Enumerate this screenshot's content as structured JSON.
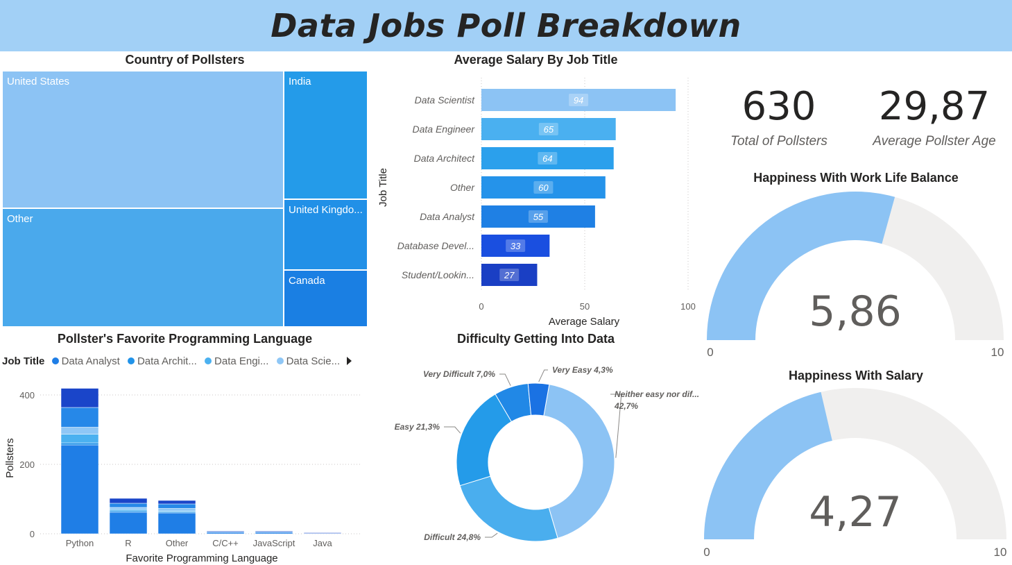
{
  "header": {
    "title": "Data Jobs Poll Breakdown"
  },
  "treemap": {
    "title": "Country of Pollsters",
    "tiles": [
      {
        "label": "United States",
        "color": "#8cc3f4"
      },
      {
        "label": "Other",
        "color": "#4aa9ec"
      },
      {
        "label": "India",
        "color": "#249be9"
      },
      {
        "label": "United Kingdo...",
        "color": "#2190e7"
      },
      {
        "label": "Canada",
        "color": "#1a7fe3"
      }
    ]
  },
  "kpis": {
    "total_value": "630",
    "total_label": "Total of Pollsters",
    "age_value": "29,87",
    "age_label": "Average Pollster Age"
  },
  "salary_chart": {
    "title": "Average Salary By Job Title",
    "xlabel": "Average Salary",
    "ylabel": "Job Title",
    "ticks": [
      "0",
      "50",
      "100"
    ]
  },
  "language_chart": {
    "title": "Pollster's Favorite Programming Language",
    "legend_title": "Job Title",
    "legend_items": [
      {
        "label": "Data Analyst",
        "color": "#1f7ee6"
      },
      {
        "label": "Data Archit...",
        "color": "#2193e9"
      },
      {
        "label": "Data Engi...",
        "color": "#4bb1f0"
      },
      {
        "label": "Data Scie...",
        "color": "#8fc7f6"
      }
    ],
    "xlabel": "Favorite Programming Language",
    "ylabel": "Pollsters"
  },
  "difficulty_chart": {
    "title": "Difficulty Getting Into Data"
  },
  "gauge_wlb": {
    "title": "Happiness With Work Life Balance",
    "value": "5,86",
    "min": "0",
    "max": "10",
    "fraction": 0.586
  },
  "gauge_salary": {
    "title": "Happiness With Salary",
    "value": "4,27",
    "min": "0",
    "max": "10",
    "fraction": 0.427
  },
  "colors": {
    "track": "#f0efee",
    "fill": "#8cc3f4",
    "header": "#a2d0f6"
  },
  "chart_data": [
    {
      "type": "bar",
      "orientation": "horizontal",
      "title": "Average Salary By Job Title",
      "xlabel": "Average Salary",
      "ylabel": "Job Title",
      "categories": [
        "Data Scientist",
        "Data Engineer",
        "Data Architect",
        "Other",
        "Data Analyst",
        "Database Devel...",
        "Student/Lookin..."
      ],
      "values": [
        94,
        65,
        64,
        60,
        55,
        33,
        27
      ],
      "data_labels": [
        "94",
        "65",
        "64",
        "60",
        "55",
        "33",
        "27"
      ],
      "colors": [
        "#8cc3f4",
        "#4ab0f0",
        "#2ba0ec",
        "#2593ea",
        "#1f80e4",
        "#1a4fe0",
        "#1a3fc4"
      ],
      "xlim": [
        0,
        100
      ],
      "grid": true
    },
    {
      "type": "bar",
      "stacked": true,
      "title": "Pollster's Favorite Programming Language",
      "xlabel": "Favorite Programming Language",
      "ylabel": "Pollsters",
      "categories": [
        "Python",
        "R",
        "Other",
        "C/C++",
        "JavaScript",
        "Java"
      ],
      "yticks": [
        "0",
        "200",
        "400"
      ],
      "ylim": [
        0,
        440
      ],
      "series": [
        {
          "name": "Data Analyst",
          "values": [
            256,
            62,
            60,
            5,
            5,
            2
          ],
          "color": "#1f7ee6"
        },
        {
          "name": "Data Archit...",
          "values": [
            6,
            4,
            3,
            0,
            0,
            0
          ],
          "color": "#2193e9"
        },
        {
          "name": "Data Engi...",
          "values": [
            25,
            4,
            3,
            0,
            0,
            0
          ],
          "color": "#4bb1f0"
        },
        {
          "name": "Data Scie...",
          "values": [
            20,
            6,
            7,
            0,
            0,
            0
          ],
          "color": "#8fc7f6"
        },
        {
          "name": "",
          "values": [
            57,
            12,
            13,
            1,
            1,
            0
          ],
          "color": "#2688e8"
        },
        {
          "name": "",
          "values": [
            55,
            14,
            10,
            2,
            2,
            1
          ],
          "color": "#1a45c9"
        }
      ],
      "grid": true
    },
    {
      "type": "pie",
      "donut": true,
      "title": "Difficulty Getting Into Data",
      "slices": [
        {
          "label": "Neither easy nor dif...",
          "value": 42.7,
          "display": "42,7%",
          "color": "#8cc3f4"
        },
        {
          "label": "Difficult",
          "value": 24.8,
          "display": "24,8%",
          "color": "#4aaeee"
        },
        {
          "label": "Easy",
          "value": 21.3,
          "display": "21,3%",
          "color": "#249be9"
        },
        {
          "label": "Very Difficult",
          "value": 7.0,
          "display": "7,0%",
          "color": "#2188e6"
        },
        {
          "label": "Very Easy",
          "value": 4.3,
          "display": "4,3%",
          "color": "#1a72e3"
        }
      ]
    }
  ]
}
